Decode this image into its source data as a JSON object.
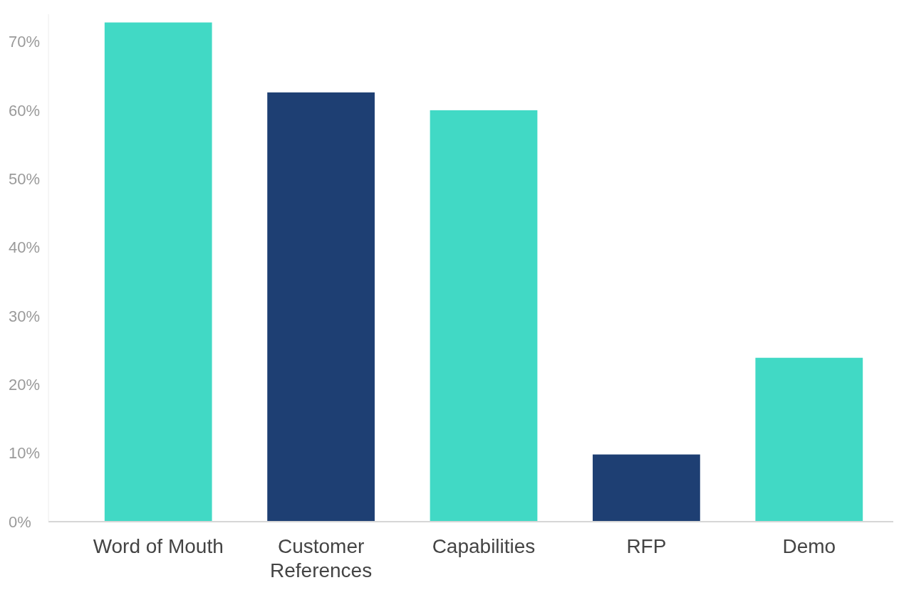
{
  "chart_data": {
    "type": "bar",
    "categories": [
      "Word of Mouth",
      "Customer References",
      "Capabilities",
      "RFP",
      "Demo"
    ],
    "values": [
      72.8,
      62.6,
      60,
      9.8,
      23.9
    ],
    "colors": [
      "#41d9c5",
      "#1e3f73",
      "#41d9c5",
      "#1e3f73",
      "#41d9c5"
    ],
    "ylim": [
      0,
      74
    ],
    "yticks": [
      {
        "value": 0,
        "label": "0%"
      },
      {
        "value": 10,
        "label": "10%"
      },
      {
        "value": 20,
        "label": "20%"
      },
      {
        "value": 30,
        "label": "30%"
      },
      {
        "value": 40,
        "label": "40%"
      },
      {
        "value": 50,
        "label": "50%"
      },
      {
        "value": 60,
        "label": "60%"
      },
      {
        "value": 70,
        "label": "70%"
      }
    ],
    "grid": false
  }
}
